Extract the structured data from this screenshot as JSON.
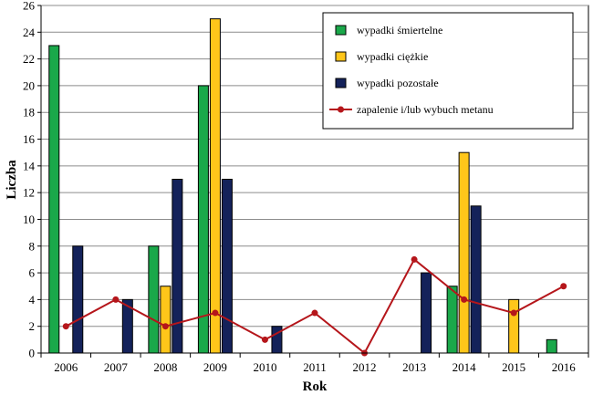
{
  "chart_data": {
    "type": "bar",
    "xlabel": "Rok",
    "ylabel": "Liczba",
    "categories": [
      "2006",
      "2007",
      "2008",
      "2009",
      "2010",
      "2011",
      "2012",
      "2013",
      "2014",
      "2015",
      "2016"
    ],
    "ylim": [
      0,
      26
    ],
    "yticks": [
      0,
      2,
      4,
      6,
      8,
      10,
      12,
      14,
      16,
      18,
      20,
      22,
      24,
      26
    ],
    "grid": "horizontal",
    "legend_position": "top-right",
    "series": [
      {
        "name": "wypadki śmiertelne",
        "kind": "bar",
        "color": "#1aa84a",
        "values": [
          23,
          0,
          8,
          20,
          0,
          0,
          0,
          0,
          5,
          0,
          1
        ]
      },
      {
        "name": "wypadki ciężkie",
        "kind": "bar",
        "color": "#ffc61a",
        "values": [
          0,
          0,
          5,
          25,
          0,
          0,
          0,
          0,
          15,
          4,
          0
        ]
      },
      {
        "name": "wypadki pozostałe",
        "kind": "bar",
        "color": "#14225a",
        "values": [
          8,
          4,
          13,
          13,
          2,
          0,
          0,
          6,
          11,
          0,
          0
        ]
      },
      {
        "name": "zapalenie i/lub wybuch  metanu",
        "kind": "line",
        "color": "#b5161b",
        "values": [
          2,
          4,
          2,
          3,
          1,
          3,
          0,
          7,
          4,
          3,
          5
        ]
      }
    ]
  }
}
